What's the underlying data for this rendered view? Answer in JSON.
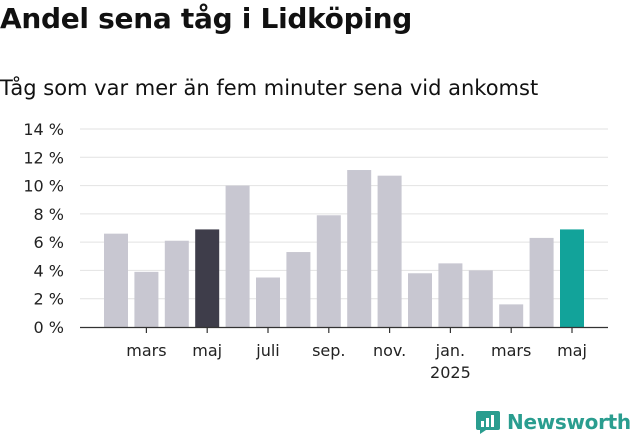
{
  "header": {
    "title": "Andel sena tåg i Lidköping",
    "subtitle": "Tåg som var mer än fem minuter sena vid ankomst"
  },
  "brand": {
    "name": "Newsworthy",
    "icon": "newsworthy-logo-icon",
    "color": "#2a9d8f"
  },
  "colors": {
    "default": "#c8c7d1",
    "highlight_last_year": "#3e3d4a",
    "highlight_current": "#12a39a"
  },
  "chart_data": {
    "type": "bar",
    "title": "Andel sena tåg i Lidköping",
    "subtitle": "Tåg som var mer än fem minuter sena vid ankomst",
    "ylim": [
      0,
      14
    ],
    "ytick_values": [
      0,
      2,
      4,
      6,
      8,
      10,
      12,
      14
    ],
    "ytick_labels": [
      "0 %",
      "2 %",
      "4 %",
      "6 %",
      "8 %",
      "10 %",
      "12 %",
      "14 %"
    ],
    "grid": true,
    "categories": [
      "2024-02",
      "2024-03",
      "2024-04",
      "2024-05",
      "2024-06",
      "2024-07",
      "2024-08",
      "2024-09",
      "2024-10",
      "2024-11",
      "2024-12",
      "2025-01",
      "2025-02",
      "2025-03",
      "2025-04",
      "2025-05"
    ],
    "values": [
      6.6,
      3.9,
      6.1,
      6.9,
      10.0,
      3.5,
      5.3,
      7.9,
      11.1,
      10.7,
      3.8,
      4.5,
      4.0,
      1.6,
      6.3,
      6.9
    ],
    "bar_colors": [
      "#c8c7d1",
      "#c8c7d1",
      "#c8c7d1",
      "#3e3d4a",
      "#c8c7d1",
      "#c8c7d1",
      "#c8c7d1",
      "#c8c7d1",
      "#c8c7d1",
      "#c8c7d1",
      "#c8c7d1",
      "#c8c7d1",
      "#c8c7d1",
      "#c8c7d1",
      "#c8c7d1",
      "#12a39a"
    ],
    "xtick_labels": [
      {
        "index": 1,
        "label": "mars"
      },
      {
        "index": 3,
        "label": "maj"
      },
      {
        "index": 5,
        "label": "juli"
      },
      {
        "index": 7,
        "label": "sep."
      },
      {
        "index": 9,
        "label": "nov."
      },
      {
        "index": 11,
        "label": "jan.",
        "sublabel": "2025"
      },
      {
        "index": 13,
        "label": "mars"
      },
      {
        "index": 15,
        "label": "maj"
      }
    ]
  }
}
